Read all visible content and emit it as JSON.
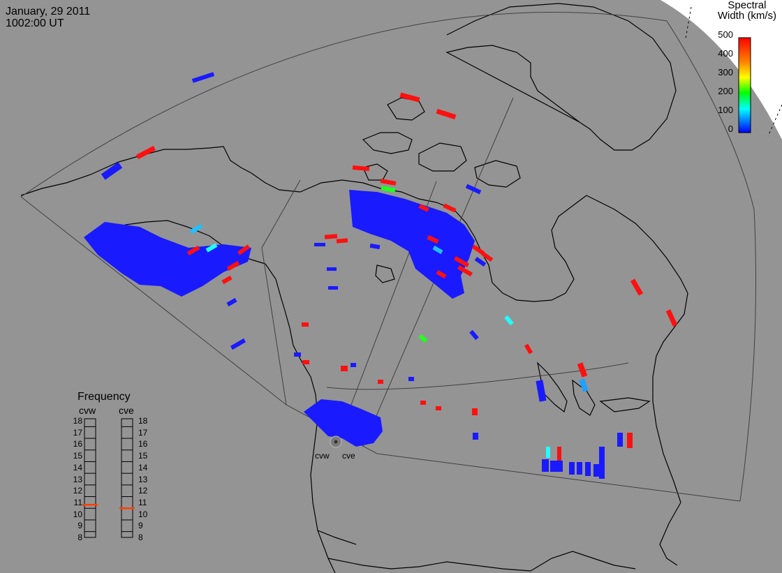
{
  "header": {
    "date": "January, 29 2011",
    "time": "1002:00 UT"
  },
  "colorbar": {
    "title_line1": "Spectral",
    "title_line2": "Width (km/s)",
    "ticks": [
      "500",
      "400",
      "300",
      "200",
      "100",
      "0"
    ],
    "colors": [
      "#ff0000",
      "#ff8000",
      "#ffff00",
      "#00ff00",
      "#00ffff",
      "#0000ff"
    ]
  },
  "frequency_panel": {
    "title": "Frequency",
    "radars": [
      {
        "name": "cvw",
        "frequency_mhz": 10.8
      },
      {
        "name": "cve",
        "frequency_mhz": 10.5
      }
    ],
    "scale": [
      "18",
      "17",
      "16",
      "15",
      "14",
      "13",
      "12",
      "11",
      "10",
      "9",
      "8"
    ],
    "marker_color": "#ff4000"
  },
  "radars": [
    {
      "label": "cvw"
    },
    {
      "label": "cve"
    }
  ],
  "colors": {
    "background": "#949494",
    "land_outline": "#000000",
    "fov_outline": "#404040",
    "scatter_low": "#1a1aff",
    "scatter_high": "#ff1010"
  }
}
